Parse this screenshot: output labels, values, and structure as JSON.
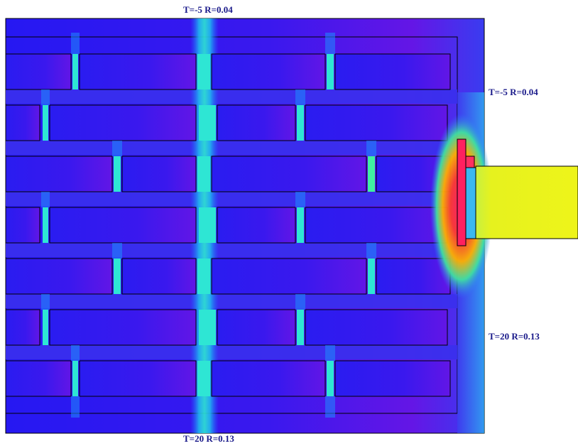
{
  "labels": {
    "top": "T=-5 R=0.04",
    "right_top": "T=-5 R=0.04",
    "right_bottom": "T=20 R=0.13",
    "bottom": "T=20 R=0.13"
  },
  "colors": {
    "field_base": "#2a1cf0",
    "field_warm": "#5a16e8",
    "mortar_joint": "#28e4d8",
    "joint_glow": "#1a8cff",
    "hot_spot": "#ff2060",
    "warm_spot": "#ffcc00",
    "beam": "#e8f21e",
    "outline": "#000000"
  }
}
